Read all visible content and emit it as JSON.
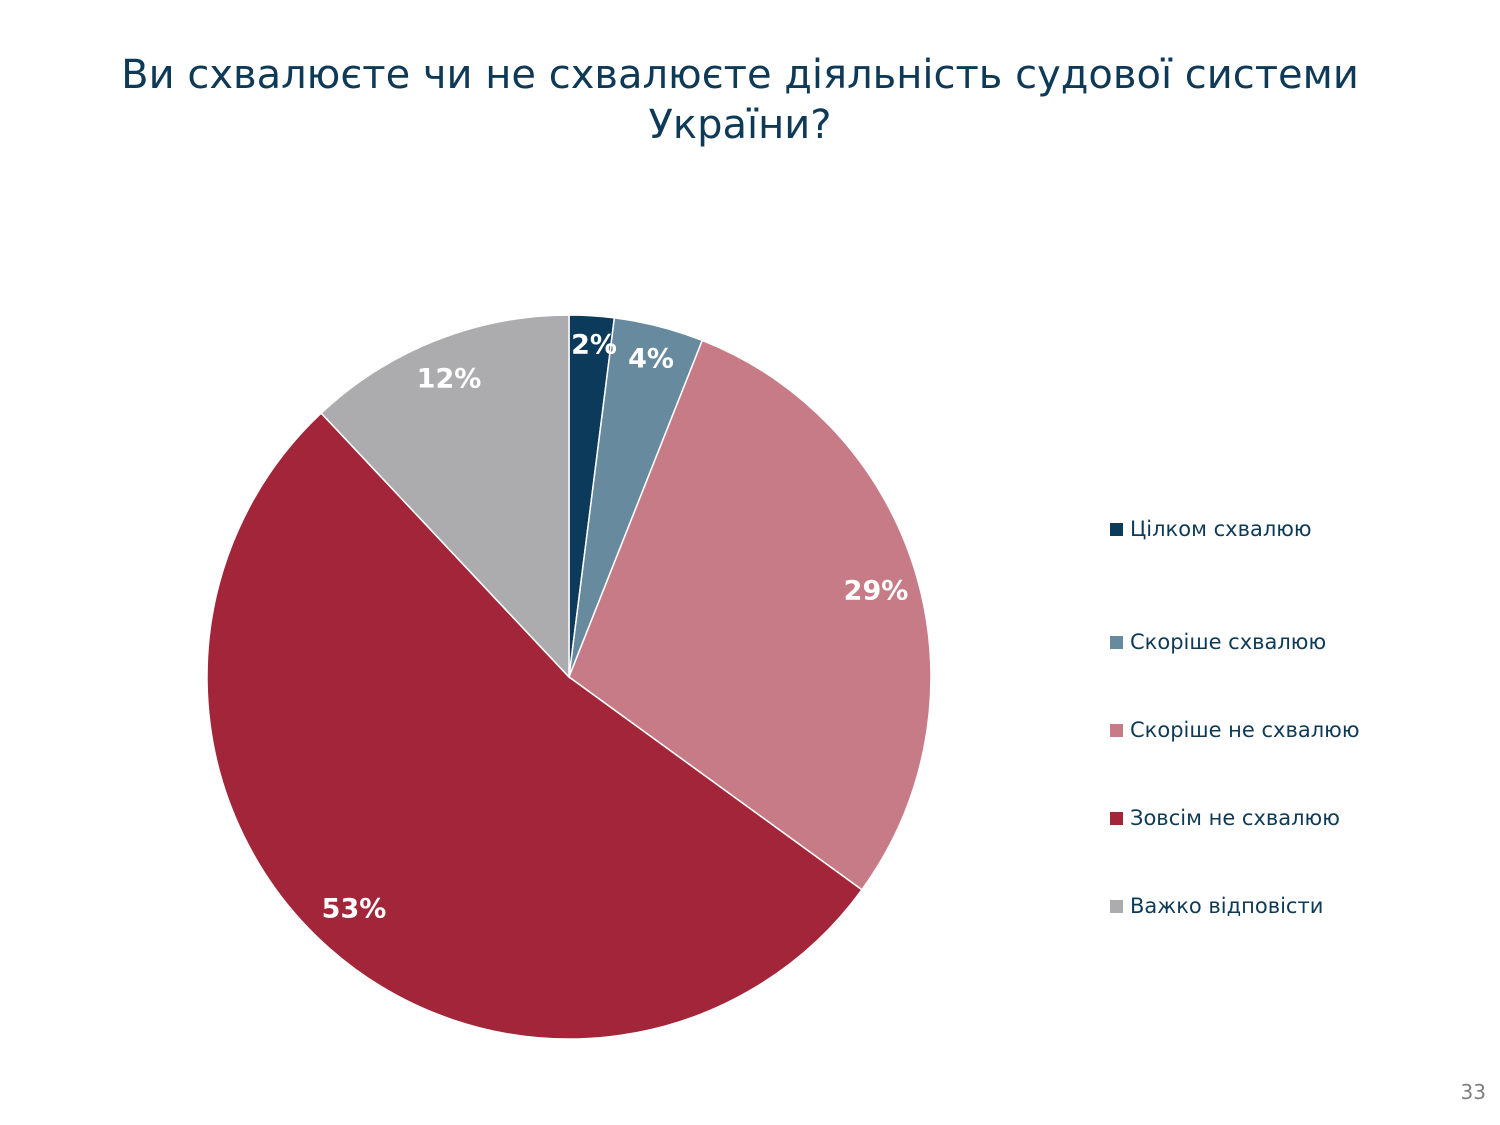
{
  "slide": {
    "title": "Ви схвалюєте чи не схвалюєте діяльність судової системи України?",
    "page_number": "33"
  },
  "chart_data": {
    "type": "pie",
    "title": "Ви схвалюєте чи не схвалюєте діяльність судової системи України?",
    "categories": [
      "Цілком схвалюю",
      "Скоріше схвалюю",
      "Скоріше не схвалюю",
      "Зовсім не схвалюю",
      "Важко відповісти"
    ],
    "values": [
      2,
      4,
      29,
      53,
      12
    ],
    "data_labels": [
      "2%",
      "4%",
      "29%",
      "53%",
      "12%"
    ],
    "colors": [
      "#0b3a5b",
      "#688a9e",
      "#c77b86",
      "#a22539",
      "#acacae"
    ],
    "legend_position": "right"
  }
}
